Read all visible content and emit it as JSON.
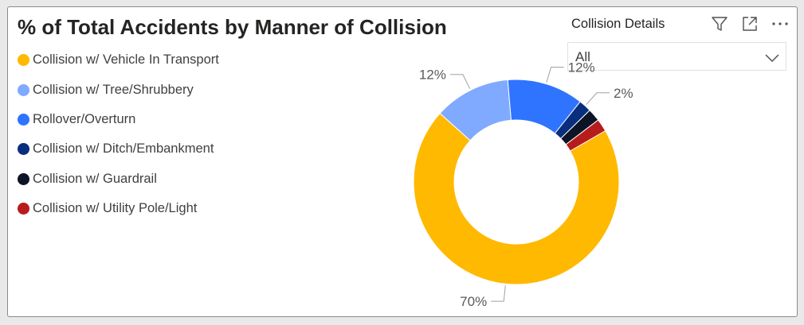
{
  "visual": {
    "title": "% of Total Accidents by Manner of Collision"
  },
  "slicer": {
    "label": "Collision Details",
    "selected": "All"
  },
  "toolbar": {
    "icons": [
      "filter-icon",
      "focus-mode-icon",
      "more-options-icon"
    ]
  },
  "colors": {
    "Collision w/ Vehicle In Transport": "#FFB900",
    "Collision w/ Tree/Shrubbery": "#7FAAFF",
    "Rollover/Overturn": "#2E74FF",
    "Collision w/ Ditch/Embankment": "#0A2E7E",
    "Collision w/ Guardrail": "#0C1426",
    "Collision w/ Utility Pole/Light": "#B71C1C"
  },
  "chart_data": {
    "type": "pie",
    "donut": true,
    "title": "% of Total Accidents by Manner of Collision",
    "legend_position": "top-left",
    "categories": [
      "Collision w/ Vehicle In Transport",
      "Collision w/ Tree/Shrubbery",
      "Rollover/Overturn",
      "Collision w/ Ditch/Embankment",
      "Collision w/ Guardrail",
      "Collision w/ Utility Pole/Light"
    ],
    "values": [
      70,
      12,
      12,
      2,
      2,
      2
    ],
    "data_labels": [
      "70%",
      "12%",
      "12%",
      "2%",
      "",
      ""
    ]
  }
}
